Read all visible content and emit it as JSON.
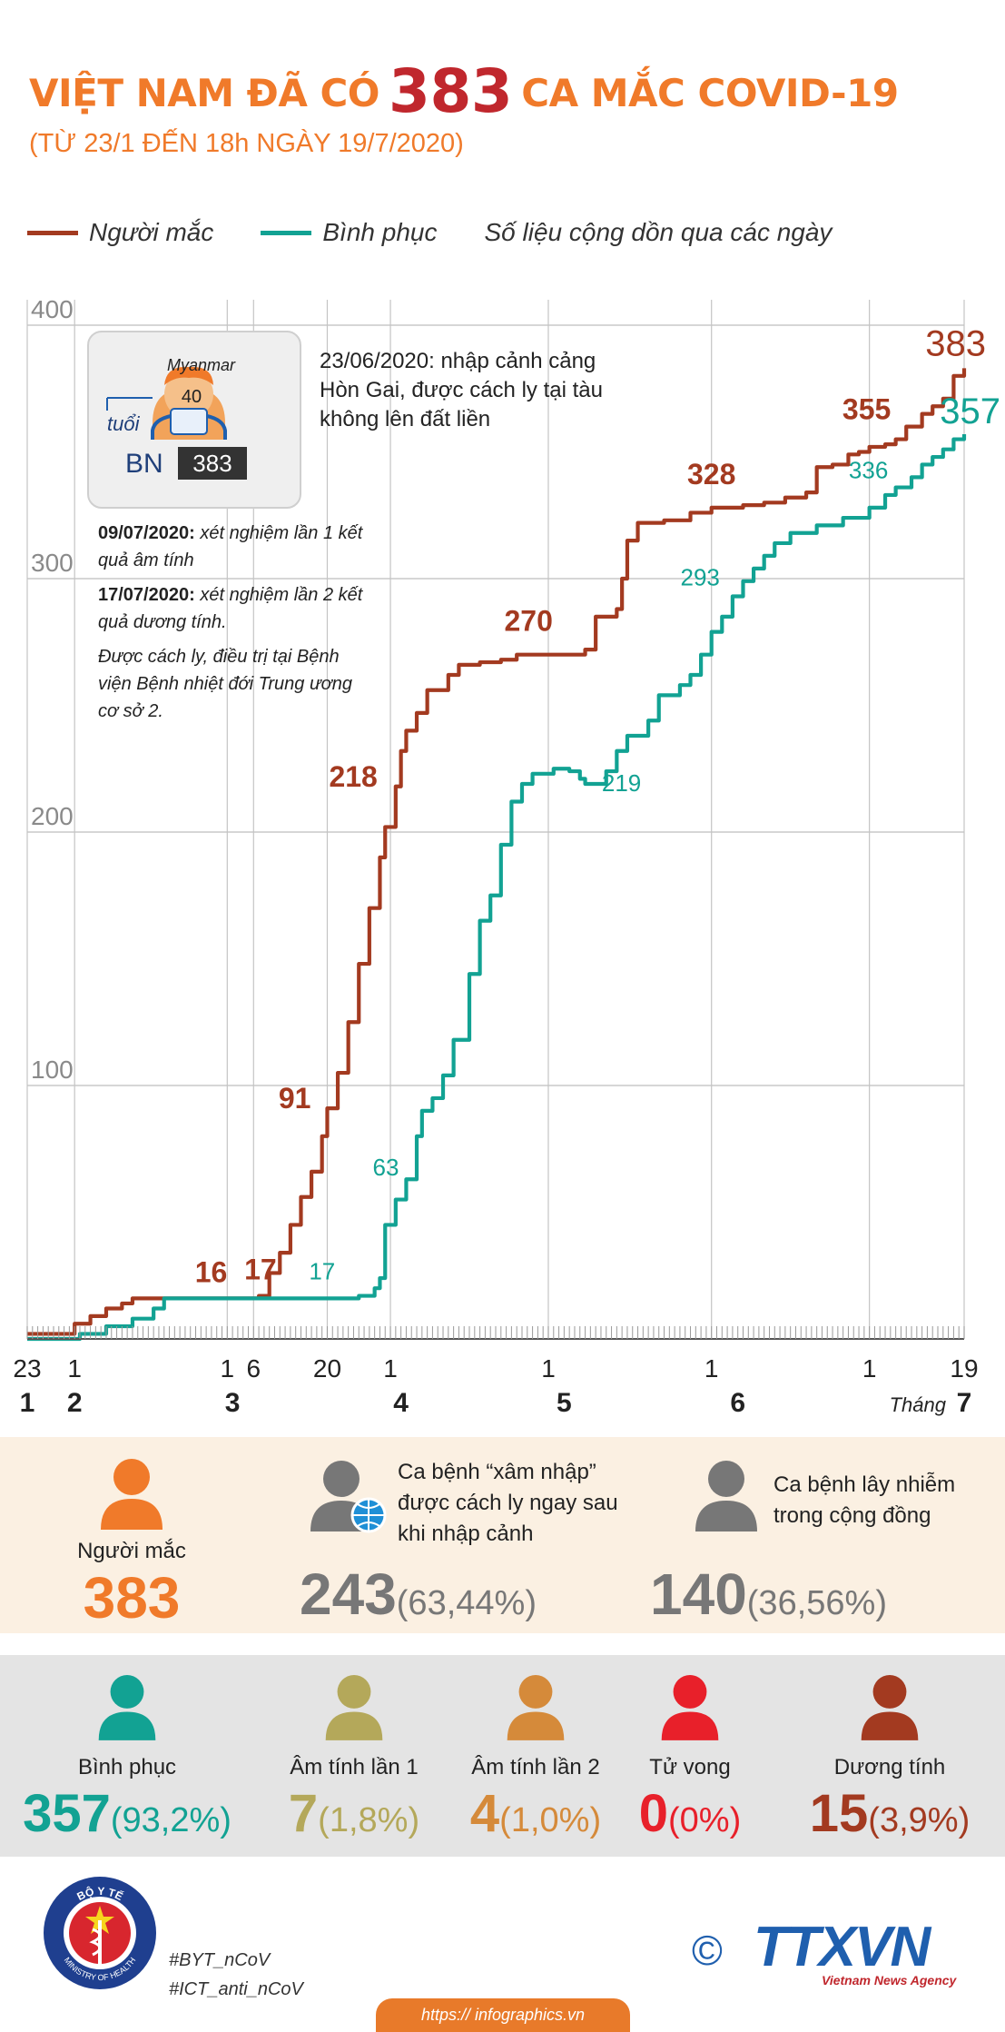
{
  "header": {
    "title_pre": "VIỆT NAM ĐÃ CÓ",
    "title_num": "383",
    "title_post": "CA MẮC COVID-19",
    "subtitle": "(TỪ 23/1 ĐẾN 18h NGÀY 19/7/2020)"
  },
  "legend": {
    "cases": "Người mắc",
    "recovered": "Bình phục",
    "note": "Số liệu cộng dồn qua các ngày"
  },
  "colors": {
    "cases": "#a33a20",
    "recovered": "#12a293",
    "orange": "#f07a2a",
    "gray": "#777777",
    "red": "#e8202a",
    "olive": "#b4a85a",
    "amber": "#d58a3a"
  },
  "patient": {
    "country": "Myanmar",
    "age": "40",
    "age_label": "tuổi",
    "bn_label": "BN",
    "bn_number": "383"
  },
  "notes": {
    "note1": "23/06/2020: nhập cảnh cảng Hòn Gai, được cách ly tại tàu không lên đất liền",
    "test1_date": "09/07/2020:",
    "test1_text": "xét nghiệm lần 1 kết quả âm tính",
    "test2_date": "17/07/2020:",
    "test2_text": "xét nghiệm lần 2 kết quả dương tính.",
    "treatment": "Được cách ly, điều trị tại Bệnh viện Bệnh nhiệt đới Trung ương cơ sở 2."
  },
  "chart_data": {
    "type": "line",
    "title": "VIỆT NAM ĐÃ CÓ 383 CA MẮC COVID-19",
    "xlabel": "Tháng",
    "ylabel": "",
    "x_range_days": [
      0,
      178
    ],
    "ylim": [
      0,
      400
    ],
    "yticks": [
      100,
      200,
      300,
      400
    ],
    "grid": true,
    "x_day_labels": [
      {
        "text": "23",
        "day": 0
      },
      {
        "text": "1",
        "day": 9
      },
      {
        "text": "1",
        "day": 38
      },
      {
        "text": "6",
        "day": 43
      },
      {
        "text": "20",
        "day": 57
      },
      {
        "text": "1",
        "day": 69
      },
      {
        "text": "1",
        "day": 99
      },
      {
        "text": "1",
        "day": 130
      },
      {
        "text": "1",
        "day": 160
      },
      {
        "text": "19",
        "day": 178
      }
    ],
    "x_month_labels": [
      {
        "text": "1",
        "day": 0
      },
      {
        "text": "2",
        "day": 9
      },
      {
        "text": "3",
        "day": 39
      },
      {
        "text": "4",
        "day": 71
      },
      {
        "text": "5",
        "day": 102
      },
      {
        "text": "6",
        "day": 135
      },
      {
        "text": "7",
        "day": 178
      }
    ],
    "month_label_word": "Tháng",
    "series": [
      {
        "name": "Người mắc",
        "color": "#a33a20",
        "points": [
          [
            0,
            2
          ],
          [
            7,
            2
          ],
          [
            9,
            6
          ],
          [
            12,
            9
          ],
          [
            15,
            12
          ],
          [
            18,
            14
          ],
          [
            20,
            16
          ],
          [
            38,
            16
          ],
          [
            44,
            17
          ],
          [
            46,
            26
          ],
          [
            48,
            34
          ],
          [
            50,
            45
          ],
          [
            52,
            56
          ],
          [
            54,
            66
          ],
          [
            56,
            80
          ],
          [
            57,
            91
          ],
          [
            59,
            105
          ],
          [
            61,
            125
          ],
          [
            63,
            148
          ],
          [
            65,
            170
          ],
          [
            67,
            190
          ],
          [
            68,
            202
          ],
          [
            70,
            218
          ],
          [
            71,
            232
          ],
          [
            72,
            240
          ],
          [
            74,
            247
          ],
          [
            76,
            256
          ],
          [
            80,
            262
          ],
          [
            82,
            266
          ],
          [
            86,
            267
          ],
          [
            90,
            268
          ],
          [
            93,
            270
          ],
          [
            98,
            270
          ],
          [
            104,
            270
          ],
          [
            106,
            272
          ],
          [
            108,
            285
          ],
          [
            112,
            288
          ],
          [
            113,
            300
          ],
          [
            114,
            315
          ],
          [
            116,
            322
          ],
          [
            121,
            323
          ],
          [
            126,
            326
          ],
          [
            130,
            328
          ],
          [
            136,
            329
          ],
          [
            140,
            330
          ],
          [
            144,
            332
          ],
          [
            148,
            334
          ],
          [
            150,
            344
          ],
          [
            153,
            345
          ],
          [
            156,
            349
          ],
          [
            158,
            350
          ],
          [
            160,
            352
          ],
          [
            163,
            353
          ],
          [
            165,
            355
          ],
          [
            167,
            360
          ],
          [
            170,
            365
          ],
          [
            172,
            368
          ],
          [
            174,
            371
          ],
          [
            176,
            380
          ],
          [
            178,
            383
          ]
        ]
      },
      {
        "name": "Bình phục",
        "color": "#12a293",
        "points": [
          [
            0,
            0
          ],
          [
            8,
            0
          ],
          [
            10,
            2
          ],
          [
            15,
            5
          ],
          [
            20,
            8
          ],
          [
            24,
            12
          ],
          [
            26,
            16
          ],
          [
            38,
            16
          ],
          [
            44,
            16
          ],
          [
            54,
            16
          ],
          [
            63,
            17
          ],
          [
            66,
            20
          ],
          [
            67,
            24
          ],
          [
            68,
            45
          ],
          [
            70,
            55
          ],
          [
            72,
            63
          ],
          [
            74,
            80
          ],
          [
            75,
            90
          ],
          [
            77,
            95
          ],
          [
            79,
            104
          ],
          [
            81,
            118
          ],
          [
            84,
            144
          ],
          [
            86,
            165
          ],
          [
            88,
            175
          ],
          [
            90,
            195
          ],
          [
            92,
            212
          ],
          [
            94,
            219
          ],
          [
            96,
            223
          ],
          [
            100,
            225
          ],
          [
            103,
            224
          ],
          [
            105,
            221
          ],
          [
            106,
            219
          ],
          [
            108,
            219
          ],
          [
            110,
            224
          ],
          [
            112,
            232
          ],
          [
            114,
            238
          ],
          [
            118,
            244
          ],
          [
            120,
            254
          ],
          [
            124,
            258
          ],
          [
            126,
            262
          ],
          [
            128,
            270
          ],
          [
            130,
            279
          ],
          [
            132,
            285
          ],
          [
            134,
            293
          ],
          [
            136,
            299
          ],
          [
            138,
            304
          ],
          [
            140,
            309
          ],
          [
            142,
            314
          ],
          [
            145,
            318
          ],
          [
            150,
            321
          ],
          [
            155,
            324
          ],
          [
            160,
            328
          ],
          [
            163,
            333
          ],
          [
            165,
            336
          ],
          [
            168,
            340
          ],
          [
            170,
            345
          ],
          [
            172,
            348
          ],
          [
            174,
            351
          ],
          [
            176,
            355
          ],
          [
            178,
            357
          ]
        ]
      }
    ],
    "annotations": [
      {
        "series": "Người mắc",
        "text": "16",
        "day": 38,
        "value": 16
      },
      {
        "series": "Người mắc",
        "text": "17",
        "day": 44,
        "value": 17
      },
      {
        "series": "Người mắc",
        "text": "91",
        "day": 57,
        "value": 91
      },
      {
        "series": "Người mắc",
        "text": "218",
        "day": 70,
        "value": 218
      },
      {
        "series": "Người mắc",
        "text": "270",
        "day": 98,
        "value": 270
      },
      {
        "series": "Người mắc",
        "text": "328",
        "day": 130,
        "value": 328
      },
      {
        "series": "Người mắc",
        "text": "355",
        "day": 165,
        "value": 355
      },
      {
        "series": "Người mắc",
        "text": "383",
        "day": 178,
        "value": 383
      },
      {
        "series": "Bình phục",
        "text": "17",
        "day": 63,
        "value": 17
      },
      {
        "series": "Bình phục",
        "text": "63",
        "day": 72,
        "value": 63
      },
      {
        "series": "Bình phục",
        "text": "219",
        "day": 106,
        "value": 219
      },
      {
        "series": "Bình phục",
        "text": "293",
        "day": 134,
        "value": 293
      },
      {
        "series": "Bình phục",
        "text": "336",
        "day": 165,
        "value": 336
      },
      {
        "series": "Bình phục",
        "text": "357",
        "day": 178,
        "value": 357
      }
    ]
  },
  "summary": {
    "cases_label": "Người mắc",
    "cases_value": "383",
    "imported_label": "Ca bệnh “xâm nhập” được cách ly ngay sau khi nhập cảnh",
    "imported_value": "243",
    "imported_pct": "(63,44%)",
    "community_label": "Ca bệnh lây nhiễm trong cộng đồng",
    "community_value": "140",
    "community_pct": "(36,56%)"
  },
  "outcomes": {
    "recovered_label": "Bình phục",
    "recovered_value": "357",
    "recovered_pct": "(93,2%)",
    "neg1_label": "Âm tính lần 1",
    "neg1_value": "7",
    "neg1_pct": "(1,8%)",
    "neg2_label": "Âm tính lần 2",
    "neg2_value": "4",
    "neg2_pct": "(1,0%)",
    "death_label": "Tử vong",
    "death_value": "0",
    "death_pct": "(0%)",
    "positive_label": "Dương tính",
    "positive_value": "15",
    "positive_pct": "(3,9%)"
  },
  "footer": {
    "moh_top": "BỘ Y TẾ",
    "moh_bottom": "MINISTRY OF HEALTH",
    "tag1": "#BYT_nCoV",
    "tag2": "#ICT_anti_nCoV",
    "copyright": "©",
    "agency": "TTXVN",
    "agency_sub": "Vietnam News Agency",
    "url": "https:// infographics.vn"
  }
}
